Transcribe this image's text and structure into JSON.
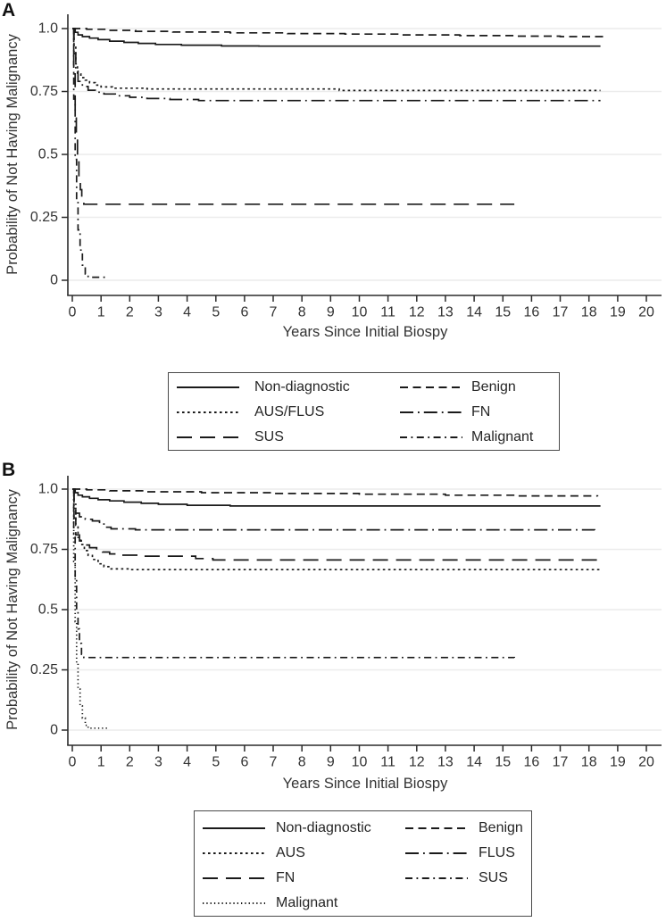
{
  "colors": {
    "line": "#1a1a1a",
    "grid": "#ececec",
    "axis": "#2b2b2b",
    "text": "#333333",
    "background": "#ffffff",
    "legend_border": "#4a4a4a"
  },
  "chart_data": [
    {
      "type": "line",
      "subtype": "kaplan-meier-step",
      "panel_label": "A",
      "xlabel": "Years Since Initial Biospy",
      "ylabel": "Probability of Not Having Malignancy",
      "xlim": [
        0,
        20
      ],
      "ylim": [
        0,
        1
      ],
      "xticks": [
        0,
        1,
        2,
        3,
        4,
        5,
        6,
        7,
        8,
        9,
        10,
        11,
        12,
        13,
        14,
        15,
        16,
        17,
        18,
        19,
        20
      ],
      "yticks": [
        {
          "v": 1.0,
          "label": "1.0"
        },
        {
          "v": 0.75,
          "label": "0.75"
        },
        {
          "v": 0.5,
          "label": "0.5"
        },
        {
          "v": 0.25,
          "label": "0.25"
        },
        {
          "v": 0,
          "label": "0"
        }
      ],
      "grid": "horizontal",
      "legend_position": "below",
      "legend_rows": [
        [
          {
            "label": "Non-diagnostic",
            "style": "solid"
          },
          {
            "label": "Benign",
            "style": "dash"
          }
        ],
        [
          {
            "label": "AUS/FLUS",
            "style": "dot"
          },
          {
            "label": "FN",
            "style": "longdashdot"
          }
        ],
        [
          {
            "label": "SUS",
            "style": "longdash"
          },
          {
            "label": "Malignant",
            "style": "shortdashdot"
          }
        ]
      ],
      "series": [
        {
          "name": "Non-diagnostic",
          "style": "solid",
          "points": [
            [
              0,
              1
            ],
            [
              0.1,
              0.985
            ],
            [
              0.2,
              0.975
            ],
            [
              0.35,
              0.968
            ],
            [
              0.6,
              0.962
            ],
            [
              0.9,
              0.956
            ],
            [
              1.3,
              0.95
            ],
            [
              1.8,
              0.945
            ],
            [
              2.3,
              0.941
            ],
            [
              2.9,
              0.937
            ],
            [
              3.8,
              0.934
            ],
            [
              5.2,
              0.931
            ],
            [
              6.5,
              0.93
            ],
            [
              18.4,
              0.93
            ]
          ]
        },
        {
          "name": "Benign",
          "style": "dash",
          "points": [
            [
              0,
              1
            ],
            [
              0.5,
              0.997
            ],
            [
              1.2,
              0.993
            ],
            [
              2.2,
              0.989
            ],
            [
              3.5,
              0.986
            ],
            [
              5.5,
              0.983
            ],
            [
              7.5,
              0.98
            ],
            [
              9.5,
              0.978
            ],
            [
              11.5,
              0.975
            ],
            [
              13.5,
              0.972
            ],
            [
              15.5,
              0.97
            ],
            [
              17,
              0.968
            ],
            [
              18.55,
              0.966
            ]
          ]
        },
        {
          "name": "AUS/FLUS",
          "style": "dot",
          "points": [
            [
              0,
              1
            ],
            [
              0.06,
              0.93
            ],
            [
              0.12,
              0.86
            ],
            [
              0.18,
              0.82
            ],
            [
              0.3,
              0.805
            ],
            [
              0.45,
              0.795
            ],
            [
              0.6,
              0.785
            ],
            [
              0.8,
              0.775
            ],
            [
              1,
              0.768
            ],
            [
              1.4,
              0.763
            ],
            [
              2.6,
              0.76
            ],
            [
              9.3,
              0.754
            ],
            [
              18.4,
              0.754
            ]
          ]
        },
        {
          "name": "FN",
          "style": "longdashdot",
          "points": [
            [
              0,
              1
            ],
            [
              0.06,
              0.9
            ],
            [
              0.12,
              0.83
            ],
            [
              0.2,
              0.79
            ],
            [
              0.35,
              0.77
            ],
            [
              0.55,
              0.755
            ],
            [
              0.8,
              0.747
            ],
            [
              1.1,
              0.74
            ],
            [
              1.5,
              0.733
            ],
            [
              2,
              0.727
            ],
            [
              2.6,
              0.722
            ],
            [
              3.4,
              0.718
            ],
            [
              4.4,
              0.714
            ],
            [
              18.4,
              0.714
            ]
          ]
        },
        {
          "name": "SUS",
          "style": "longdash",
          "points": [
            [
              0,
              1
            ],
            [
              0.05,
              0.82
            ],
            [
              0.1,
              0.66
            ],
            [
              0.14,
              0.56
            ],
            [
              0.18,
              0.47
            ],
            [
              0.23,
              0.41
            ],
            [
              0.28,
              0.36
            ],
            [
              0.33,
              0.32
            ],
            [
              0.4,
              0.302
            ],
            [
              15.4,
              0.302
            ]
          ]
        },
        {
          "name": "Malignant",
          "style": "shortdashdot",
          "points": [
            [
              0,
              1
            ],
            [
              0.05,
              0.72
            ],
            [
              0.1,
              0.48
            ],
            [
              0.15,
              0.32
            ],
            [
              0.2,
              0.2
            ],
            [
              0.27,
              0.12
            ],
            [
              0.35,
              0.06
            ],
            [
              0.45,
              0.025
            ],
            [
              0.55,
              0.012
            ],
            [
              1.2,
              0.01
            ]
          ]
        }
      ]
    },
    {
      "type": "line",
      "subtype": "kaplan-meier-step",
      "panel_label": "B",
      "xlabel": "Years Since Initial Biospy",
      "ylabel": "Probability of Not Having Malignancy",
      "xlim": [
        0,
        20
      ],
      "ylim": [
        0,
        1
      ],
      "xticks": [
        0,
        1,
        2,
        3,
        4,
        5,
        6,
        7,
        8,
        9,
        10,
        11,
        12,
        13,
        14,
        15,
        16,
        17,
        18,
        19,
        20
      ],
      "yticks": [
        {
          "v": 1.0,
          "label": "1.0"
        },
        {
          "v": 0.75,
          "label": "0.75"
        },
        {
          "v": 0.5,
          "label": "0.5"
        },
        {
          "v": 0.25,
          "label": "0.25"
        },
        {
          "v": 0,
          "label": "0"
        }
      ],
      "grid": "horizontal",
      "legend_position": "below",
      "legend_rows": [
        [
          {
            "label": "Non-diagnostic",
            "style": "solid"
          },
          {
            "label": "Benign",
            "style": "dash"
          }
        ],
        [
          {
            "label": "AUS",
            "style": "dot"
          },
          {
            "label": "FLUS",
            "style": "longdashdot"
          }
        ],
        [
          {
            "label": "FN",
            "style": "longdash"
          },
          {
            "label": "SUS",
            "style": "shortdashdot"
          }
        ],
        [
          {
            "label": "Malignant",
            "style": "finedot"
          },
          null
        ]
      ],
      "series": [
        {
          "name": "Non-diagnostic",
          "style": "solid",
          "points": [
            [
              0,
              1
            ],
            [
              0.1,
              0.985
            ],
            [
              0.2,
              0.975
            ],
            [
              0.35,
              0.968
            ],
            [
              0.6,
              0.962
            ],
            [
              0.9,
              0.956
            ],
            [
              1.3,
              0.951
            ],
            [
              1.8,
              0.946
            ],
            [
              2.4,
              0.941
            ],
            [
              3,
              0.937
            ],
            [
              4,
              0.933
            ],
            [
              5.5,
              0.93
            ],
            [
              18.4,
              0.93
            ]
          ]
        },
        {
          "name": "Benign",
          "style": "dash",
          "points": [
            [
              0,
              1
            ],
            [
              0.5,
              0.997
            ],
            [
              1.3,
              0.993
            ],
            [
              2.5,
              0.989
            ],
            [
              4.5,
              0.985
            ],
            [
              7,
              0.982
            ],
            [
              10,
              0.979
            ],
            [
              13,
              0.975
            ],
            [
              15.5,
              0.972
            ],
            [
              18.3,
              0.97
            ]
          ]
        },
        {
          "name": "AUS",
          "style": "dot",
          "points": [
            [
              0,
              1
            ],
            [
              0.06,
              0.92
            ],
            [
              0.12,
              0.85
            ],
            [
              0.2,
              0.8
            ],
            [
              0.3,
              0.77
            ],
            [
              0.42,
              0.745
            ],
            [
              0.55,
              0.725
            ],
            [
              0.7,
              0.708
            ],
            [
              0.9,
              0.69
            ],
            [
              1.1,
              0.678
            ],
            [
              1.35,
              0.669
            ],
            [
              2,
              0.666
            ],
            [
              18.4,
              0.665
            ]
          ]
        },
        {
          "name": "FLUS",
          "style": "longdashdot",
          "points": [
            [
              0,
              1
            ],
            [
              0.06,
              0.95
            ],
            [
              0.12,
              0.9
            ],
            [
              0.25,
              0.885
            ],
            [
              0.45,
              0.875
            ],
            [
              0.7,
              0.868
            ],
            [
              0.95,
              0.855
            ],
            [
              1.15,
              0.842
            ],
            [
              1.35,
              0.835
            ],
            [
              2.2,
              0.831
            ],
            [
              18.2,
              0.83
            ]
          ]
        },
        {
          "name": "FN",
          "style": "longdash",
          "points": [
            [
              0,
              1
            ],
            [
              0.06,
              0.88
            ],
            [
              0.12,
              0.81
            ],
            [
              0.25,
              0.785
            ],
            [
              0.4,
              0.768
            ],
            [
              0.6,
              0.757
            ],
            [
              0.85,
              0.748
            ],
            [
              1.05,
              0.739
            ],
            [
              1.3,
              0.731
            ],
            [
              1.7,
              0.726
            ],
            [
              2.3,
              0.722
            ],
            [
              4.3,
              0.712
            ],
            [
              4.9,
              0.706
            ],
            [
              18.4,
              0.706
            ]
          ]
        },
        {
          "name": "SUS",
          "style": "shortdashdot",
          "points": [
            [
              0,
              1
            ],
            [
              0.05,
              0.8
            ],
            [
              0.1,
              0.62
            ],
            [
              0.15,
              0.5
            ],
            [
              0.2,
              0.42
            ],
            [
              0.25,
              0.36
            ],
            [
              0.32,
              0.315
            ],
            [
              0.4,
              0.301
            ],
            [
              15.4,
              0.3
            ]
          ]
        },
        {
          "name": "Malignant",
          "style": "finedot",
          "points": [
            [
              0,
              1
            ],
            [
              0.05,
              0.7
            ],
            [
              0.1,
              0.45
            ],
            [
              0.15,
              0.28
            ],
            [
              0.2,
              0.17
            ],
            [
              0.27,
              0.1
            ],
            [
              0.35,
              0.05
            ],
            [
              0.45,
              0.02
            ],
            [
              0.55,
              0.008
            ],
            [
              1.25,
              0.006
            ]
          ]
        }
      ]
    }
  ]
}
